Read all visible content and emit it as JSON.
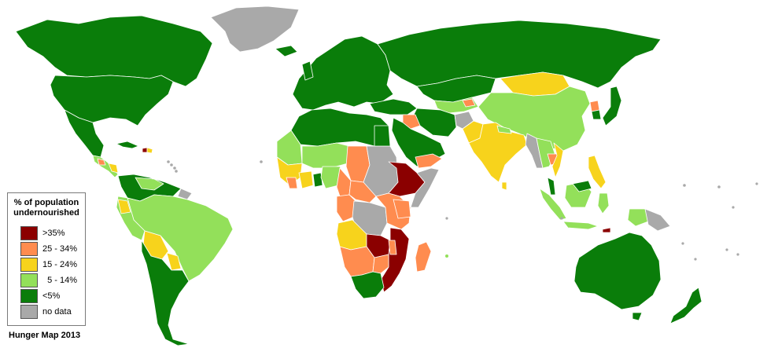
{
  "title": "Hunger Map 2013",
  "legend": {
    "title_line1": "% of population",
    "title_line2": "undernourished",
    "items": [
      {
        "label": ">35%",
        "color": "#8b0000"
      },
      {
        "label": "25 - 34%",
        "color": "#ff8c4f"
      },
      {
        "label": "15 - 24%",
        "color": "#f7d31c"
      },
      {
        "label": "  5 - 14%",
        "color": "#93e05a"
      },
      {
        "label": "<5%",
        "color": "#0a7d0a"
      },
      {
        "label": "no data",
        "color": "#a9a9a9"
      }
    ]
  },
  "colors": {
    "severe": "#8b0000",
    "high": "#ff8c4f",
    "moderate": "#f7d31c",
    "low": "#93e05a",
    "very_low": "#0a7d0a",
    "no_data": "#a9a9a9",
    "background": "#ffffff"
  }
}
